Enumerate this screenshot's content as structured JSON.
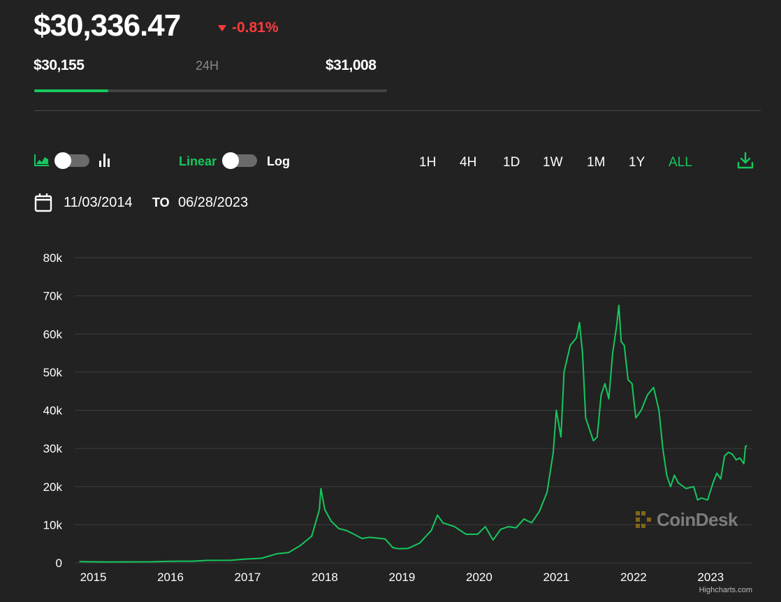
{
  "header": {
    "price": "$30,336.47",
    "change": "-0.81%",
    "change_direction": "down",
    "range": {
      "low": "$30,155",
      "label": "24H",
      "high": "$31,008",
      "position_fraction": 0.21
    }
  },
  "controls": {
    "chart_type_left_icon": "area-chart-icon",
    "chart_type_right_icon": "bar-chart-icon",
    "scale_linear_label": "Linear",
    "scale_log_label": "Log",
    "selected_scale": "Linear",
    "ranges": [
      "1H",
      "4H",
      "1D",
      "1W",
      "1M",
      "1Y",
      "ALL"
    ],
    "active_range": "ALL",
    "download_icon": "download-icon",
    "date_from": "11/03/2014",
    "to_label": "TO",
    "date_to": "06/28/2023"
  },
  "colors": {
    "background": "#222222",
    "accent": "#16c75d",
    "negative": "#ff3b3b",
    "grid": "#3c3c3c"
  },
  "chart_data": {
    "type": "line",
    "title": "",
    "xlabel": "",
    "ylabel": "",
    "ylim": [
      0,
      80000
    ],
    "y_ticks": [
      0,
      10000,
      20000,
      30000,
      40000,
      50000,
      60000,
      70000,
      80000
    ],
    "y_tick_labels": [
      "0",
      "10k",
      "20k",
      "30k",
      "40k",
      "50k",
      "60k",
      "70k",
      "80k"
    ],
    "x_ticks": [
      2015,
      2016,
      2017,
      2018,
      2019,
      2020,
      2021,
      2022,
      2023
    ],
    "x_tick_labels": [
      "2015",
      "2016",
      "2017",
      "2018",
      "2019",
      "2020",
      "2021",
      "2022",
      "2023"
    ],
    "grid": "horizontal",
    "series": [
      {
        "color": "#16c75d",
        "x": [
          2014.84,
          2015.0,
          2015.2,
          2015.5,
          2015.8,
          2016.0,
          2016.3,
          2016.5,
          2016.8,
          2017.0,
          2017.2,
          2017.4,
          2017.55,
          2017.7,
          2017.85,
          2017.95,
          2017.97,
          2018.02,
          2018.1,
          2018.2,
          2018.3,
          2018.4,
          2018.5,
          2018.6,
          2018.7,
          2018.8,
          2018.9,
          2018.98,
          2019.1,
          2019.25,
          2019.4,
          2019.48,
          2019.55,
          2019.7,
          2019.85,
          2020.0,
          2020.1,
          2020.2,
          2020.3,
          2020.4,
          2020.5,
          2020.6,
          2020.7,
          2020.8,
          2020.9,
          2020.98,
          2021.02,
          2021.08,
          2021.12,
          2021.2,
          2021.28,
          2021.32,
          2021.36,
          2021.4,
          2021.45,
          2021.5,
          2021.55,
          2021.6,
          2021.65,
          2021.7,
          2021.75,
          2021.8,
          2021.83,
          2021.86,
          2021.9,
          2021.95,
          2022.0,
          2022.05,
          2022.12,
          2022.2,
          2022.28,
          2022.35,
          2022.4,
          2022.45,
          2022.5,
          2022.55,
          2022.6,
          2022.7,
          2022.8,
          2022.85,
          2022.9,
          2022.98,
          2023.05,
          2023.1,
          2023.15,
          2023.2,
          2023.25,
          2023.3,
          2023.35,
          2023.4,
          2023.45,
          2023.47,
          2023.49
        ],
        "y": [
          350,
          300,
          260,
          280,
          300,
          420,
          440,
          650,
          700,
          1000,
          1200,
          2400,
          2700,
          4500,
          7000,
          14000,
          19500,
          14000,
          11000,
          9000,
          8500,
          7500,
          6400,
          6700,
          6500,
          6300,
          4000,
          3700,
          3800,
          5200,
          8500,
          12500,
          10500,
          9500,
          7500,
          7500,
          9500,
          6000,
          8800,
          9500,
          9200,
          11500,
          10500,
          13500,
          18500,
          29000,
          40000,
          33000,
          50000,
          57000,
          59000,
          63000,
          55000,
          38000,
          35000,
          32000,
          33000,
          44000,
          47000,
          43000,
          55000,
          62000,
          67500,
          58000,
          57000,
          48000,
          47000,
          38000,
          40000,
          44000,
          46000,
          40000,
          30000,
          23000,
          20000,
          23000,
          21000,
          19500,
          20000,
          16500,
          17000,
          16500,
          21000,
          23500,
          22000,
          28000,
          29000,
          28500,
          27000,
          27500,
          26000,
          30500,
          30800
        ]
      }
    ]
  },
  "watermark": "CoinDesk",
  "credit": "Highcharts.com"
}
